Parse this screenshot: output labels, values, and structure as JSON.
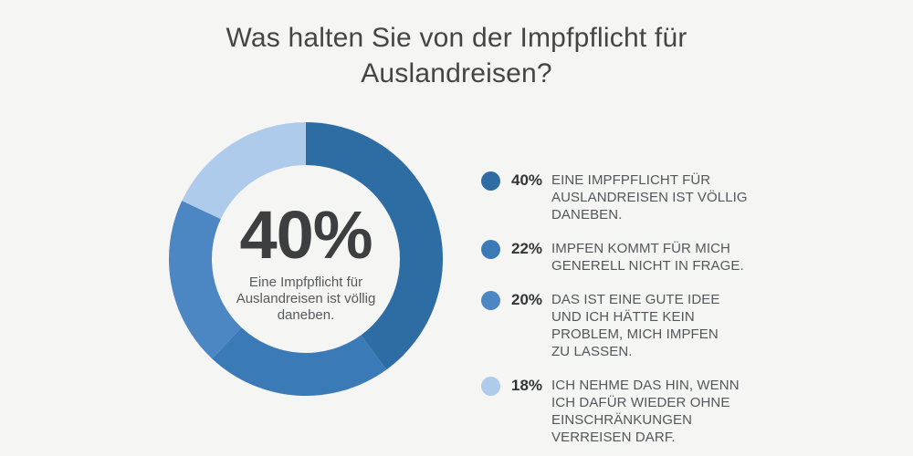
{
  "page": {
    "background_color": "#f5f5f4"
  },
  "title": "Was halten Sie von der Impfpflicht für\nAuslandreisen?",
  "donut_center": {
    "percent": "40%",
    "caption": "Eine Impfpflicht für\nAuslandreisen ist völlig\ndaneben."
  },
  "legend": {
    "items": [
      {
        "percent": "40%",
        "label": "EINE IMPFPFLICHT FÜR\nAUSLANDREISEN IST VÖLLIG\nDANEBEN.",
        "color": "#2e6da4"
      },
      {
        "percent": "22%",
        "label": "IMPFEN KOMMT FÜR MICH\nGENERELL NICHT IN FRAGE.",
        "color": "#3a7ab7"
      },
      {
        "percent": "20%",
        "label": "DAS IST EINE GUTE IDEE\nUND ICH HÄTTE KEIN\nPROBLEM, MICH IMPFEN\nZU LASSEN.",
        "color": "#4c86c3"
      },
      {
        "percent": "18%",
        "label": "ICH NEHME DAS HIN, WENN\nICH DAFÜR WIEDER OHNE\nEINSCHRÄNKUNGEN\nVERREISEN DARF.",
        "color": "#aecbec"
      }
    ]
  },
  "chart_data": {
    "type": "pie",
    "subtype": "donut",
    "title": "Was halten Sie von der Impfpflicht für Auslandreisen?",
    "categories": [
      "Eine Impfpflicht für Auslandreisen ist völlig daneben.",
      "Impfen kommt für mich generell nicht in Frage.",
      "Das ist eine gute Idee und ich hätte kein Problem, mich impfen zu lassen.",
      "Ich nehme das hin, wenn ich dafür wieder ohne Einschränkungen verreisen darf."
    ],
    "values": [
      40,
      22,
      20,
      18
    ],
    "unit": "%",
    "colors": [
      "#2e6da4",
      "#3a7ab7",
      "#4c86c3",
      "#aecbec"
    ],
    "start_angle_deg": 0,
    "direction": "clockwise",
    "inner_radius_ratio": 0.69,
    "center_label": {
      "value": "40%",
      "text": "Eine Impfpflicht für Auslandreisen ist völlig daneben."
    },
    "legend_position": "right",
    "grid": false
  }
}
